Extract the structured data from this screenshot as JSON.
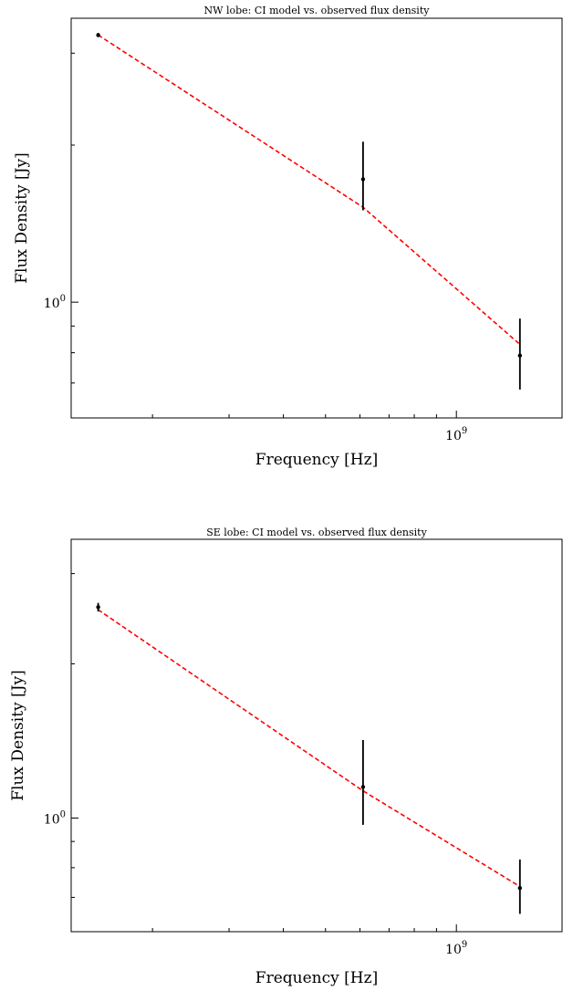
{
  "chart_data": [
    {
      "type": "scatter",
      "title": "NW lobe: CI model vs. observed flux density",
      "xlabel": "Frequency [Hz]",
      "ylabel": "Flux Density [Jy]",
      "xscale": "log",
      "yscale": "log",
      "xlim": [
        130000000.0,
        1750000000.0
      ],
      "ylim": [
        0.6,
        3.5
      ],
      "x_ticks": [
        {
          "value": 1000000000.0,
          "base": "10",
          "exp": "9"
        }
      ],
      "y_ticks": [
        {
          "value": 1.0,
          "base": "10",
          "exp": "0"
        }
      ],
      "grid": false,
      "legend": "none",
      "observed": {
        "x": [
          150000000.0,
          610000000.0,
          1400000000.0
        ],
        "y": [
          3.25,
          1.72,
          0.79
        ],
        "yerr_low": [
          0.03,
          0.22,
          0.11
        ],
        "yerr_high": [
          0.03,
          0.31,
          0.14
        ],
        "color": "#000000"
      },
      "model": {
        "x": [
          150000000.0,
          610000000.0,
          1400000000.0
        ],
        "y": [
          3.25,
          1.52,
          0.83
        ],
        "color": "#ff0000",
        "style": "dashed"
      }
    },
    {
      "type": "scatter",
      "title": "SE lobe: CI model vs. observed flux density",
      "xlabel": "Frequency [Hz]",
      "ylabel": "Flux Density [Jy]",
      "xscale": "log",
      "yscale": "log",
      "xlim": [
        130000000.0,
        1750000000.0
      ],
      "ylim": [
        0.6,
        3.5
      ],
      "x_ticks": [
        {
          "value": 1000000000.0,
          "base": "10",
          "exp": "9"
        }
      ],
      "y_ticks": [
        {
          "value": 1.0,
          "base": "10",
          "exp": "0"
        }
      ],
      "grid": false,
      "legend": "none",
      "observed": {
        "x": [
          150000000.0,
          610000000.0,
          1400000000.0
        ],
        "y": [
          2.58,
          1.15,
          0.73
        ],
        "yerr_low": [
          0.05,
          0.18,
          0.08
        ],
        "yerr_high": [
          0.05,
          0.27,
          0.1
        ],
        "color": "#000000"
      },
      "model": {
        "x": [
          150000000.0,
          610000000.0,
          1400000000.0
        ],
        "y": [
          2.55,
          1.13,
          0.735
        ],
        "color": "#ff0000",
        "style": "dashed"
      }
    }
  ]
}
